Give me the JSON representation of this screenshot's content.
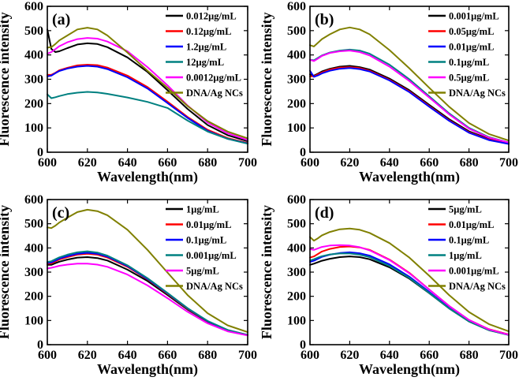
{
  "figure": {
    "colors": {
      "black": "#000000",
      "red": "#ff0000",
      "blue": "#0000ff",
      "teal": "#008080",
      "magenta": "#ff00ff",
      "olive": "#808000"
    }
  },
  "chart_data": [
    {
      "type": "line",
      "panel_label": "(a)",
      "xlabel": "Wavelength(nm)",
      "ylabel": "Fluorescence intensity",
      "xlim": [
        600,
        700
      ],
      "ylim": [
        0,
        600
      ],
      "xticks": [
        "600",
        "620",
        "640",
        "660",
        "680",
        "700"
      ],
      "yticks": [
        "0",
        "100",
        "200",
        "300",
        "400",
        "500",
        "600"
      ],
      "legend_position": "top-right",
      "x": [
        600,
        602,
        604,
        606,
        610,
        615,
        620,
        625,
        630,
        640,
        650,
        660,
        670,
        680,
        690,
        700
      ],
      "series": [
        {
          "name": "0.012μg/mL",
          "color": "#000000",
          "values": [
            505,
            425,
            412,
            415,
            428,
            443,
            448,
            445,
            432,
            390,
            330,
            255,
            178,
            112,
            70,
            45
          ]
        },
        {
          "name": "0.12μg/mL",
          "color": "#ff0000",
          "values": [
            318,
            318,
            327,
            337,
            347,
            357,
            360,
            358,
            348,
            315,
            268,
            208,
            145,
            92,
            58,
            38
          ]
        },
        {
          "name": "1.2μg/mL",
          "color": "#0000ff",
          "values": [
            312,
            315,
            325,
            334,
            344,
            352,
            355,
            352,
            342,
            308,
            262,
            202,
            141,
            88,
            55,
            36
          ]
        },
        {
          "name": "12μg/mL",
          "color": "#008080",
          "values": [
            238,
            222,
            226,
            231,
            239,
            245,
            248,
            246,
            240,
            225,
            207,
            182,
            130,
            85,
            55,
            35
          ]
        },
        {
          "name": "0.0012μg/mL",
          "color": "#ff00ff",
          "values": [
            405,
            412,
            424,
            436,
            452,
            465,
            470,
            467,
            455,
            415,
            350,
            275,
            192,
            122,
            78,
            50
          ]
        },
        {
          "name": "DNA/Ag NCs",
          "color": "#808000",
          "values": [
            430,
            432,
            445,
            460,
            480,
            505,
            512,
            505,
            480,
            410,
            335,
            265,
            190,
            128,
            85,
            57
          ]
        }
      ]
    },
    {
      "type": "line",
      "panel_label": "(b)",
      "xlabel": "Wavelength(nm)",
      "ylabel": "Fluorescence intensity",
      "xlim": [
        600,
        700
      ],
      "ylim": [
        0,
        600
      ],
      "xticks": [
        "600",
        "620",
        "640",
        "660",
        "680",
        "700"
      ],
      "yticks": [
        "0",
        "100",
        "200",
        "300",
        "400",
        "500",
        "600"
      ],
      "legend_position": "top-right",
      "x": [
        600,
        602,
        604,
        606,
        610,
        615,
        620,
        625,
        630,
        640,
        650,
        660,
        670,
        680,
        690,
        700
      ],
      "series": [
        {
          "name": "0.001μg/mL",
          "color": "#000000",
          "values": [
            320,
            315,
            323,
            332,
            343,
            352,
            355,
            350,
            340,
            303,
            255,
            195,
            136,
            86,
            55,
            38
          ]
        },
        {
          "name": "0.05μg/mL",
          "color": "#ff0000",
          "values": [
            312,
            312,
            320,
            328,
            340,
            348,
            350,
            346,
            335,
            298,
            250,
            190,
            131,
            82,
            52,
            36
          ]
        },
        {
          "name": "0.01μg/mL",
          "color": "#0000ff",
          "values": [
            335,
            310,
            316,
            324,
            335,
            343,
            346,
            342,
            332,
            295,
            247,
            187,
            129,
            80,
            50,
            34
          ]
        },
        {
          "name": "0.1μg/mL",
          "color": "#008080",
          "values": [
            380,
            378,
            388,
            398,
            410,
            418,
            422,
            418,
            405,
            360,
            300,
            230,
            160,
            100,
            62,
            40
          ]
        },
        {
          "name": "0.5μg/mL",
          "color": "#ff00ff",
          "values": [
            380,
            375,
            385,
            396,
            408,
            415,
            418,
            412,
            398,
            352,
            293,
            225,
            156,
            97,
            60,
            40
          ]
        },
        {
          "name": "DNA/Ag NCs",
          "color": "#808000",
          "values": [
            440,
            435,
            450,
            465,
            485,
            505,
            513,
            505,
            485,
            420,
            345,
            265,
            187,
            120,
            75,
            48
          ]
        }
      ]
    },
    {
      "type": "line",
      "panel_label": "(c)",
      "xlabel": "Wavelength(nm)",
      "ylabel": "Fluorescence intensity",
      "xlim": [
        600,
        700
      ],
      "ylim": [
        0,
        600
      ],
      "xticks": [
        "600",
        "620",
        "640",
        "660",
        "680",
        "700"
      ],
      "yticks": [
        "0",
        "100",
        "200",
        "300",
        "400",
        "500",
        "600"
      ],
      "legend_position": "top-right",
      "x": [
        600,
        602,
        604,
        606,
        610,
        615,
        620,
        625,
        630,
        640,
        650,
        660,
        670,
        680,
        690,
        700
      ],
      "series": [
        {
          "name": "1μg/mL",
          "color": "#000000",
          "values": [
            330,
            330,
            337,
            343,
            352,
            360,
            362,
            358,
            348,
            310,
            263,
            205,
            145,
            95,
            60,
            40
          ]
        },
        {
          "name": "0.01μg/mL",
          "color": "#ff0000",
          "values": [
            335,
            336,
            344,
            352,
            362,
            372,
            376,
            372,
            360,
            322,
            270,
            210,
            148,
            96,
            60,
            40
          ]
        },
        {
          "name": "0.1μg/mL",
          "color": "#0000ff",
          "values": [
            338,
            340,
            348,
            356,
            366,
            376,
            380,
            376,
            364,
            325,
            272,
            212,
            150,
            97,
            60,
            40
          ]
        },
        {
          "name": "0.001μg/mL",
          "color": "#008080",
          "values": [
            342,
            345,
            353,
            361,
            372,
            382,
            386,
            381,
            368,
            328,
            275,
            214,
            151,
            98,
            61,
            40
          ]
        },
        {
          "name": "5μg/mL",
          "color": "#ff00ff",
          "values": [
            315,
            318,
            322,
            326,
            331,
            335,
            335,
            331,
            322,
            290,
            245,
            192,
            136,
            88,
            55,
            38
          ]
        },
        {
          "name": "DNA/Ag NCs",
          "color": "#808000",
          "values": [
            485,
            482,
            492,
            505,
            525,
            548,
            558,
            552,
            535,
            475,
            392,
            298,
            205,
            130,
            80,
            52
          ]
        }
      ]
    },
    {
      "type": "line",
      "panel_label": "(d)",
      "xlabel": "Wavelength(nm)",
      "ylabel": "Fluorescence intensity",
      "xlim": [
        600,
        700
      ],
      "ylim": [
        0,
        600
      ],
      "xticks": [
        "600",
        "620",
        "640",
        "660",
        "680",
        "700"
      ],
      "yticks": [
        "0",
        "100",
        "200",
        "300",
        "400",
        "500",
        "600"
      ],
      "legend_position": "top-right",
      "x": [
        600,
        602,
        604,
        606,
        610,
        615,
        620,
        625,
        630,
        640,
        650,
        660,
        670,
        680,
        690,
        700
      ],
      "series": [
        {
          "name": "5μg/mL",
          "color": "#000000",
          "values": [
            330,
            335,
            341,
            347,
            355,
            362,
            365,
            362,
            353,
            320,
            273,
            213,
            150,
            96,
            60,
            40
          ]
        },
        {
          "name": "0.01μg/mL",
          "color": "#ff0000",
          "values": [
            360,
            365,
            375,
            385,
            396,
            404,
            406,
            402,
            392,
            352,
            297,
            228,
            160,
            102,
            64,
            42
          ]
        },
        {
          "name": "0.1μg/mL",
          "color": "#0000ff",
          "values": [
            342,
            347,
            355,
            363,
            372,
            379,
            382,
            378,
            368,
            332,
            281,
            218,
            152,
            97,
            61,
            40
          ]
        },
        {
          "name": "1μg/mL",
          "color": "#008080",
          "values": [
            348,
            353,
            360,
            366,
            373,
            377,
            377,
            372,
            362,
            325,
            276,
            214,
            150,
            96,
            60,
            40
          ]
        },
        {
          "name": "0.001μg/mL",
          "color": "#ff00ff",
          "values": [
            395,
            392,
            398,
            404,
            410,
            412,
            410,
            403,
            390,
            350,
            295,
            228,
            160,
            102,
            63,
            41
          ]
        },
        {
          "name": "DNA/Ag NCs",
          "color": "#808000",
          "values": [
            445,
            430,
            440,
            452,
            466,
            477,
            480,
            475,
            462,
            420,
            360,
            285,
            205,
            135,
            85,
            55
          ]
        }
      ]
    }
  ]
}
